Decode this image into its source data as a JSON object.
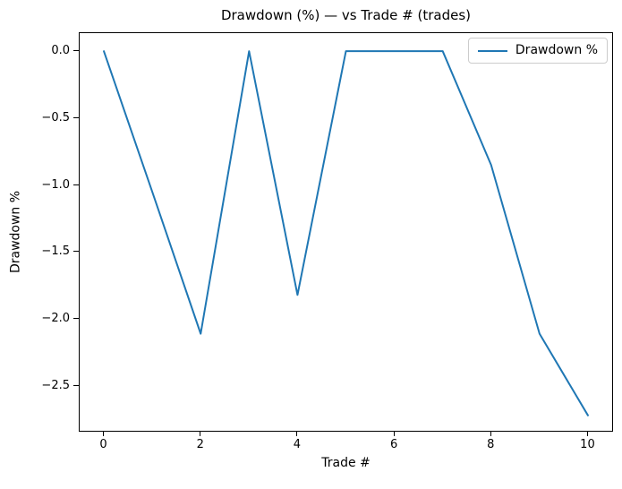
{
  "figure": {
    "background": "#ffffff",
    "spine_color": "#000000"
  },
  "chart_data": {
    "type": "line",
    "title": "Drawdown (%) — vs Trade # (trades)",
    "xlabel": "Trade #",
    "ylabel": "Drawdown %",
    "x": [
      0,
      1,
      2,
      3,
      4,
      5,
      6,
      7,
      8,
      9,
      10
    ],
    "series": [
      {
        "name": "Drawdown %",
        "color": "#1f77b4",
        "line_width": 2,
        "values": [
          0,
          -1.05,
          -2.11,
          0,
          -1.82,
          0,
          0,
          0,
          -0.85,
          -2.11,
          -2.72
        ]
      }
    ],
    "xlim": [
      -0.5,
      10.5
    ],
    "ylim": [
      -2.835,
      0.135
    ],
    "xticks": [
      0,
      2,
      4,
      6,
      8,
      10
    ],
    "xtick_labels": [
      "0",
      "2",
      "4",
      "6",
      "8",
      "10"
    ],
    "yticks": [
      0.0,
      -0.5,
      -1.0,
      -1.5,
      -2.0,
      -2.5
    ],
    "ytick_labels": [
      "0.0",
      "−0.5",
      "−1.0",
      "−1.5",
      "−2.0",
      "−2.5"
    ],
    "grid": false,
    "legend": {
      "position": "upper right",
      "entries": [
        "Drawdown %"
      ]
    }
  }
}
